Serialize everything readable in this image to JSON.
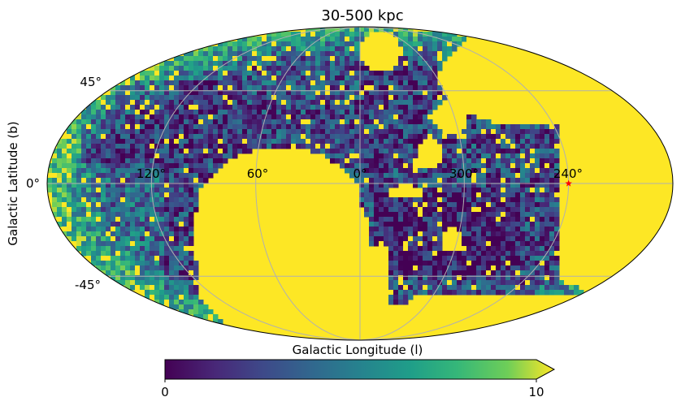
{
  "chart_data": {
    "type": "heatmap",
    "projection": "mollweide",
    "title": "30-500 kpc",
    "xlabel": "Galactic Longitude (l)",
    "ylabel": "Galactic Latitude (b)",
    "x_ticks": [
      "120°",
      "60°",
      "0°",
      "300°",
      "240°"
    ],
    "y_ticks": [
      "45°",
      "0°",
      "-45°"
    ],
    "grid": true,
    "colormap": "viridis",
    "colorbar": {
      "orientation": "horizontal",
      "position": "bottom",
      "min": 0,
      "max": 10,
      "extend": "max",
      "ticks": [
        "0",
        "10"
      ]
    },
    "saturated_regions_value": 10,
    "marker": {
      "symbol": "star",
      "color": "#ff0000",
      "l_deg": 240,
      "b_deg": 0
    }
  }
}
